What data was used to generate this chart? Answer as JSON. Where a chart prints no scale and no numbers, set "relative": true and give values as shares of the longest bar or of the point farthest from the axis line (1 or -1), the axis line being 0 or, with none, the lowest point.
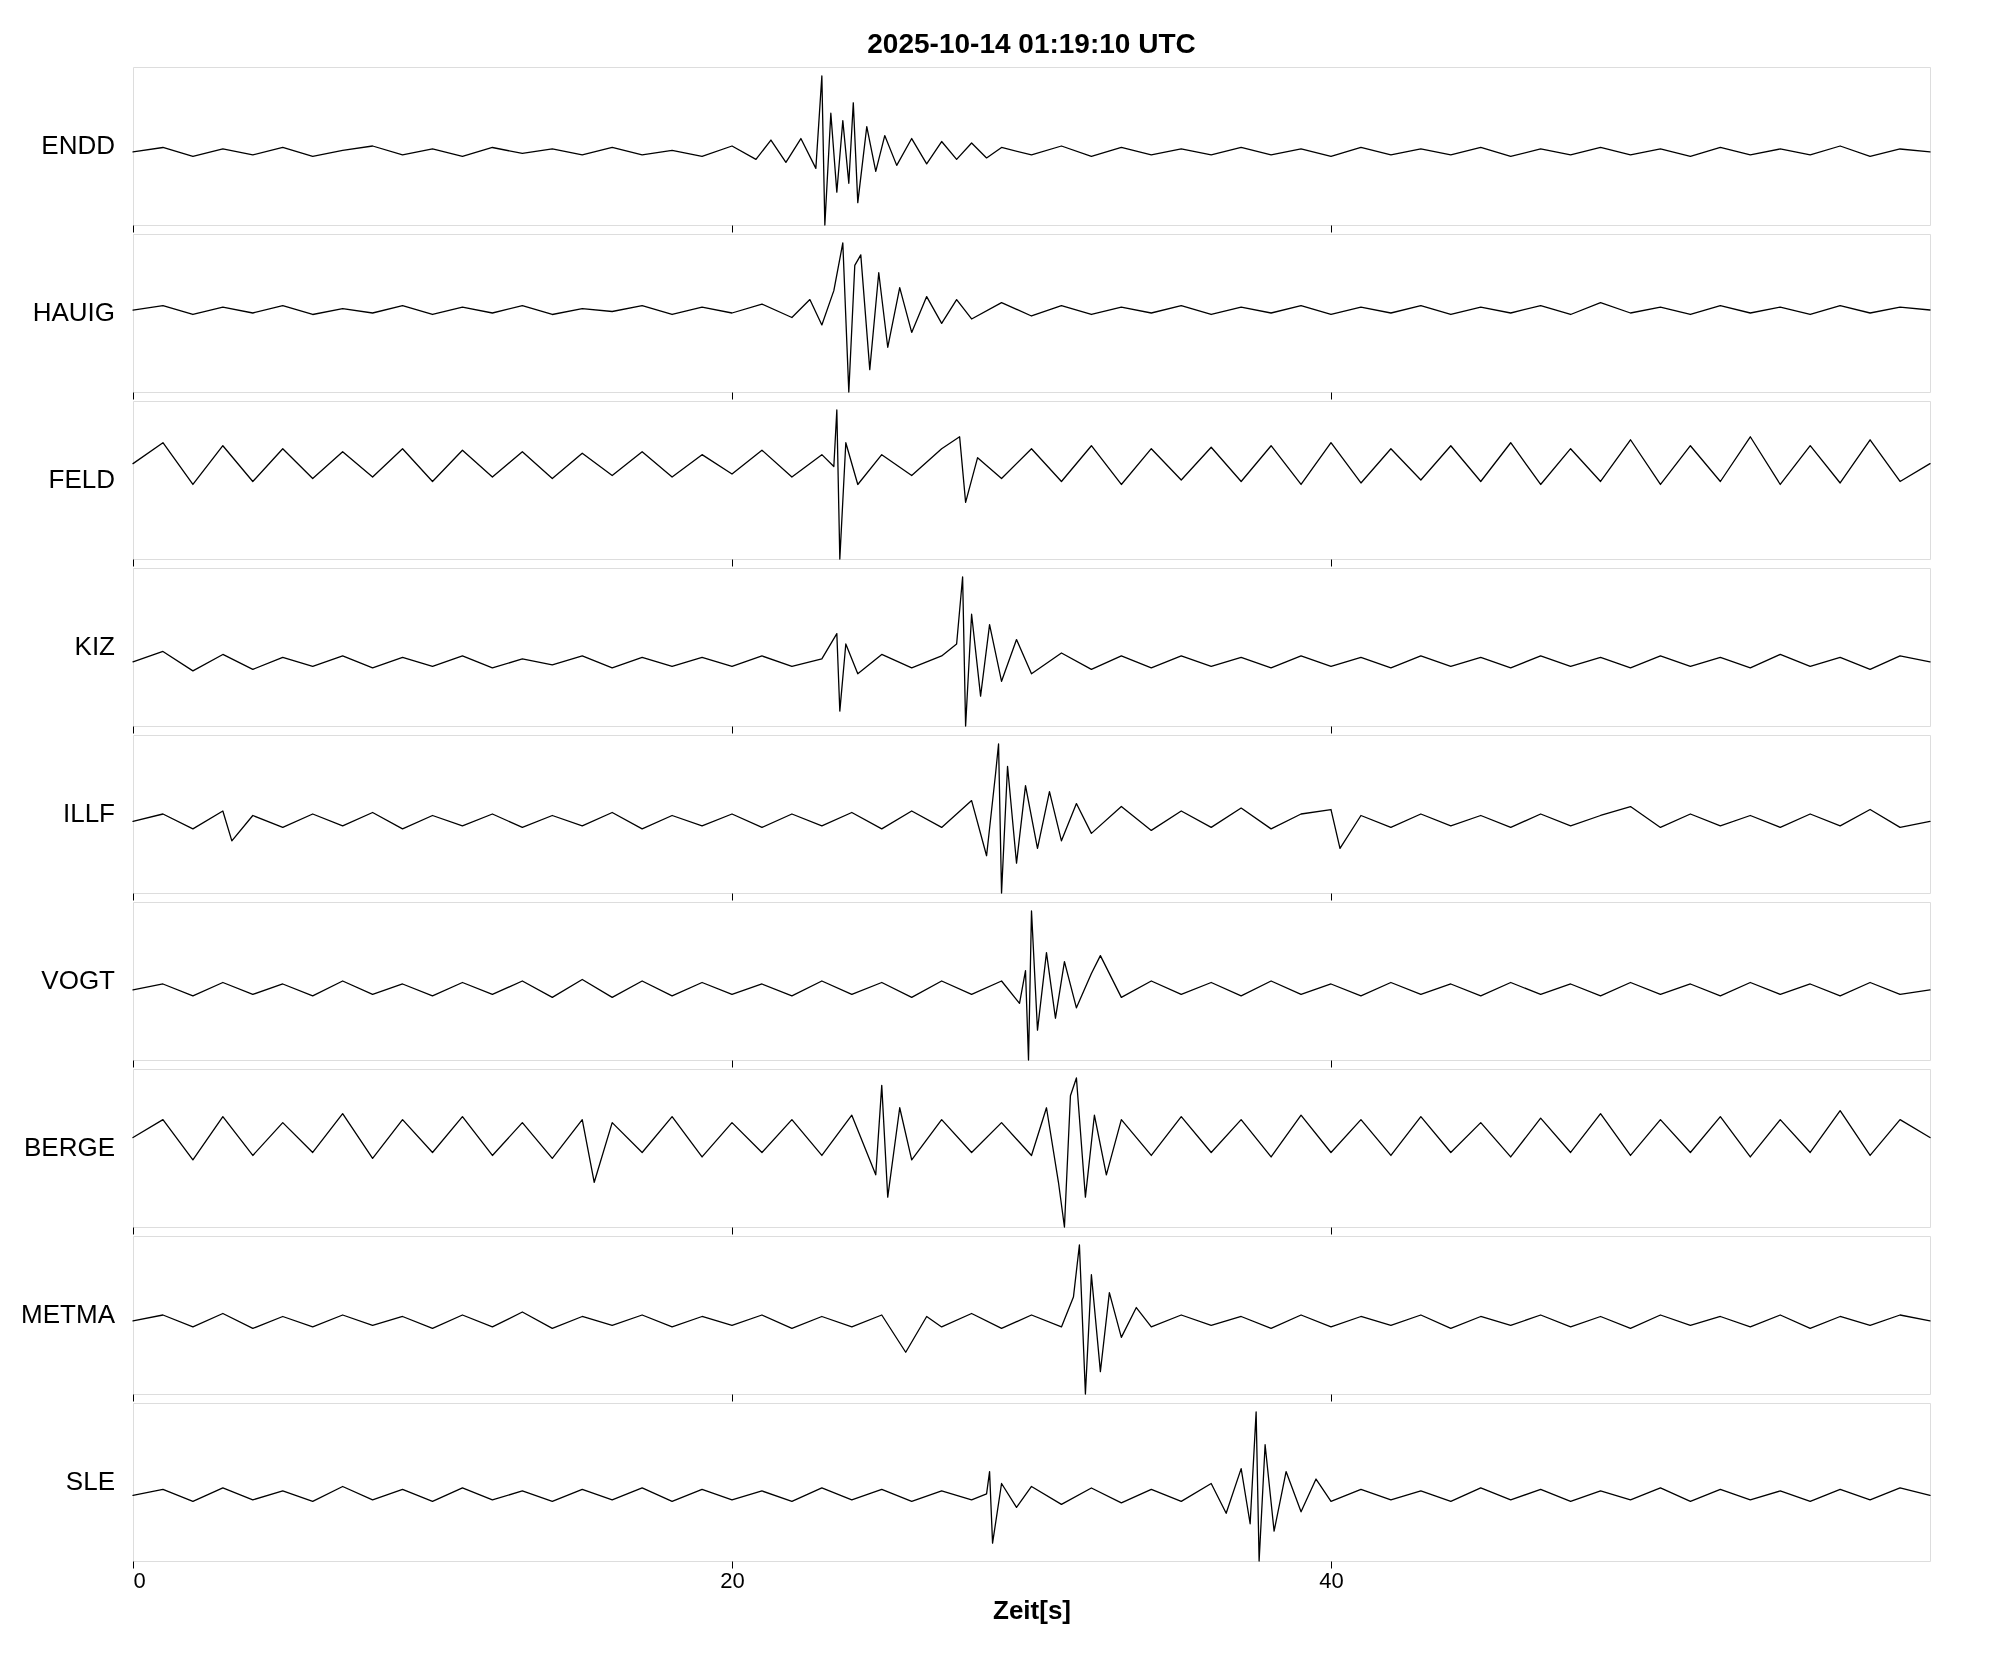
{
  "chart_data": [
    {
      "type": "line",
      "relative": true,
      "title": "2025-10-14  01:19:10 UTC",
      "xlim": [
        0,
        60
      ],
      "xticks": [
        0,
        20,
        40
      ],
      "tick_labels": false,
      "series": [
        {
          "name": "ENDD",
          "color": "#000000",
          "x": [
            0,
            1,
            2,
            3,
            4,
            5,
            6,
            7,
            8,
            9,
            10,
            11,
            12,
            13,
            14,
            15,
            16,
            17,
            18,
            19,
            20,
            20.8,
            21.3,
            21.8,
            22.3,
            22.8,
            23.0,
            23.1,
            23.3,
            23.5,
            23.7,
            23.9,
            24.05,
            24.2,
            24.5,
            24.8,
            25.1,
            25.5,
            26,
            26.5,
            27,
            27.5,
            28,
            28.5,
            29,
            30,
            31,
            32,
            33,
            34,
            35,
            36,
            37,
            38,
            39,
            40,
            41,
            42,
            43,
            44,
            45,
            46,
            47,
            48,
            49,
            50,
            51,
            52,
            53,
            54,
            55,
            56,
            57,
            58,
            59,
            60
          ],
          "values": [
            0.49,
            0.52,
            0.46,
            0.51,
            0.47,
            0.52,
            0.46,
            0.5,
            0.53,
            0.47,
            0.51,
            0.46,
            0.52,
            0.48,
            0.51,
            0.47,
            0.52,
            0.47,
            0.5,
            0.46,
            0.53,
            0.44,
            0.57,
            0.42,
            0.58,
            0.38,
            1.0,
            0.0,
            0.75,
            0.22,
            0.7,
            0.28,
            0.82,
            0.15,
            0.66,
            0.36,
            0.6,
            0.4,
            0.58,
            0.41,
            0.56,
            0.44,
            0.55,
            0.45,
            0.52,
            0.47,
            0.53,
            0.46,
            0.52,
            0.47,
            0.51,
            0.47,
            0.52,
            0.47,
            0.51,
            0.46,
            0.52,
            0.47,
            0.51,
            0.47,
            0.52,
            0.46,
            0.51,
            0.47,
            0.52,
            0.47,
            0.51,
            0.46,
            0.52,
            0.47,
            0.51,
            0.47,
            0.53,
            0.46,
            0.51,
            0.49
          ]
        }
      ]
    },
    {
      "type": "line",
      "relative": true,
      "xlim": [
        0,
        60
      ],
      "xticks": [
        0,
        20,
        40
      ],
      "tick_labels": false,
      "series": [
        {
          "name": "HAUIG",
          "color": "#000000",
          "x": [
            0,
            1,
            2,
            3,
            4,
            5,
            6,
            7,
            8,
            9,
            10,
            11,
            12,
            13,
            14,
            15,
            16,
            17,
            18,
            19,
            20,
            21,
            22,
            22.6,
            23.0,
            23.4,
            23.7,
            23.9,
            24.1,
            24.3,
            24.6,
            24.9,
            25.2,
            25.6,
            26,
            26.5,
            27,
            27.5,
            28,
            29,
            30,
            31,
            32,
            33,
            34,
            35,
            36,
            37,
            38,
            39,
            40,
            41,
            42,
            43,
            44,
            45,
            46,
            47,
            48,
            49,
            50,
            51,
            52,
            53,
            54,
            55,
            56,
            57,
            58,
            59,
            60
          ],
          "values": [
            0.55,
            0.58,
            0.52,
            0.57,
            0.53,
            0.58,
            0.52,
            0.56,
            0.53,
            0.58,
            0.52,
            0.57,
            0.53,
            0.58,
            0.52,
            0.56,
            0.54,
            0.58,
            0.52,
            0.57,
            0.53,
            0.59,
            0.5,
            0.62,
            0.45,
            0.68,
            1.0,
            0.0,
            0.85,
            0.92,
            0.15,
            0.8,
            0.3,
            0.7,
            0.4,
            0.64,
            0.46,
            0.62,
            0.49,
            0.6,
            0.51,
            0.58,
            0.52,
            0.57,
            0.53,
            0.58,
            0.52,
            0.57,
            0.53,
            0.58,
            0.52,
            0.57,
            0.53,
            0.58,
            0.52,
            0.57,
            0.53,
            0.58,
            0.52,
            0.6,
            0.53,
            0.57,
            0.52,
            0.58,
            0.53,
            0.57,
            0.52,
            0.58,
            0.53,
            0.57,
            0.55
          ]
        }
      ]
    },
    {
      "type": "line",
      "relative": true,
      "xlim": [
        0,
        60
      ],
      "xticks": [
        0,
        20,
        40
      ],
      "tick_labels": false,
      "series": [
        {
          "name": "FELD",
          "color": "#000000",
          "x": [
            0,
            1,
            2,
            3,
            4,
            5,
            6,
            7,
            8,
            9,
            10,
            11,
            12,
            13,
            14,
            15,
            16,
            17,
            18,
            19,
            20,
            21,
            22,
            23,
            23.4,
            23.5,
            23.6,
            23.8,
            24.2,
            25,
            26,
            27,
            27.6,
            27.8,
            28.2,
            29,
            30,
            31,
            32,
            33,
            34,
            35,
            36,
            37,
            38,
            39,
            40,
            41,
            42,
            43,
            44,
            45,
            46,
            47,
            48,
            49,
            50,
            51,
            52,
            53,
            54,
            55,
            56,
            57,
            58,
            59,
            60
          ],
          "values": [
            0.64,
            0.78,
            0.5,
            0.76,
            0.52,
            0.74,
            0.54,
            0.72,
            0.55,
            0.74,
            0.52,
            0.73,
            0.55,
            0.72,
            0.54,
            0.71,
            0.56,
            0.72,
            0.55,
            0.7,
            0.57,
            0.73,
            0.55,
            0.7,
            0.62,
            1.0,
            0.0,
            0.78,
            0.5,
            0.7,
            0.56,
            0.74,
            0.82,
            0.38,
            0.68,
            0.54,
            0.74,
            0.52,
            0.76,
            0.5,
            0.74,
            0.53,
            0.75,
            0.52,
            0.76,
            0.5,
            0.78,
            0.51,
            0.74,
            0.53,
            0.76,
            0.52,
            0.78,
            0.5,
            0.74,
            0.52,
            0.8,
            0.5,
            0.76,
            0.52,
            0.82,
            0.5,
            0.76,
            0.51,
            0.8,
            0.52,
            0.64
          ]
        }
      ]
    },
    {
      "type": "line",
      "relative": true,
      "xlim": [
        0,
        60
      ],
      "xticks": [
        0,
        20,
        40
      ],
      "tick_labels": false,
      "series": [
        {
          "name": "KIZ",
          "color": "#000000",
          "x": [
            0,
            1,
            2,
            3,
            4,
            5,
            6,
            7,
            8,
            9,
            10,
            11,
            12,
            13,
            14,
            15,
            16,
            17,
            18,
            19,
            20,
            21,
            22,
            23,
            23.5,
            23.6,
            23.8,
            24.2,
            25,
            26,
            27,
            27.5,
            27.7,
            27.8,
            28.0,
            28.3,
            28.6,
            29,
            29.5,
            30,
            31,
            32,
            33,
            34,
            35,
            36,
            37,
            38,
            39,
            40,
            41,
            42,
            43,
            44,
            45,
            46,
            47,
            48,
            49,
            50,
            51,
            52,
            53,
            54,
            55,
            56,
            57,
            58,
            59,
            60
          ],
          "values": [
            0.43,
            0.5,
            0.37,
            0.48,
            0.38,
            0.46,
            0.4,
            0.47,
            0.39,
            0.46,
            0.4,
            0.47,
            0.39,
            0.45,
            0.41,
            0.47,
            0.39,
            0.46,
            0.4,
            0.46,
            0.4,
            0.47,
            0.4,
            0.45,
            0.62,
            0.1,
            0.55,
            0.35,
            0.48,
            0.39,
            0.47,
            0.55,
            1.0,
            0.0,
            0.75,
            0.2,
            0.68,
            0.3,
            0.58,
            0.35,
            0.49,
            0.38,
            0.47,
            0.39,
            0.47,
            0.4,
            0.46,
            0.39,
            0.47,
            0.4,
            0.46,
            0.39,
            0.47,
            0.4,
            0.46,
            0.39,
            0.47,
            0.4,
            0.46,
            0.39,
            0.47,
            0.4,
            0.46,
            0.39,
            0.48,
            0.4,
            0.46,
            0.38,
            0.47,
            0.43
          ]
        }
      ]
    },
    {
      "type": "line",
      "relative": true,
      "xlim": [
        0,
        60
      ],
      "xticks": [
        0,
        20,
        40
      ],
      "tick_labels": false,
      "series": [
        {
          "name": "ILLF",
          "color": "#000000",
          "x": [
            0,
            1,
            2,
            3,
            3.3,
            4,
            5,
            6,
            7,
            8,
            9,
            10,
            11,
            12,
            13,
            14,
            15,
            16,
            17,
            18,
            19,
            20,
            21,
            22,
            23,
            24,
            25,
            26,
            27,
            28,
            28.5,
            28.8,
            28.9,
            29.0,
            29.2,
            29.5,
            29.8,
            30.2,
            30.6,
            31,
            31.5,
            32,
            33,
            34,
            35,
            36,
            37,
            38,
            39,
            40,
            40.3,
            41,
            42,
            43,
            44,
            45,
            46,
            47,
            48,
            49,
            50,
            51,
            52,
            53,
            54,
            55,
            56,
            57,
            58,
            59,
            60
          ],
          "values": [
            0.48,
            0.53,
            0.43,
            0.55,
            0.35,
            0.52,
            0.44,
            0.53,
            0.45,
            0.54,
            0.43,
            0.52,
            0.45,
            0.53,
            0.44,
            0.52,
            0.45,
            0.54,
            0.43,
            0.52,
            0.45,
            0.53,
            0.44,
            0.53,
            0.45,
            0.54,
            0.43,
            0.55,
            0.44,
            0.62,
            0.25,
            0.8,
            1.0,
            0.0,
            0.85,
            0.2,
            0.72,
            0.3,
            0.68,
            0.35,
            0.6,
            0.4,
            0.58,
            0.42,
            0.55,
            0.44,
            0.57,
            0.43,
            0.53,
            0.56,
            0.3,
            0.52,
            0.44,
            0.53,
            0.45,
            0.52,
            0.44,
            0.53,
            0.45,
            0.52,
            0.58,
            0.44,
            0.53,
            0.45,
            0.52,
            0.44,
            0.53,
            0.45,
            0.56,
            0.44,
            0.48
          ]
        }
      ]
    },
    {
      "type": "line",
      "relative": true,
      "xlim": [
        0,
        60
      ],
      "xticks": [
        0,
        20,
        40
      ],
      "tick_labels": false,
      "series": [
        {
          "name": "VOGT",
          "color": "#000000",
          "x": [
            0,
            1,
            2,
            3,
            4,
            5,
            6,
            7,
            8,
            9,
            10,
            11,
            12,
            13,
            14,
            15,
            16,
            17,
            18,
            19,
            20,
            21,
            22,
            23,
            24,
            25,
            26,
            27,
            28,
            29,
            29.6,
            29.8,
            29.9,
            30.0,
            30.2,
            30.5,
            30.8,
            31.1,
            31.5,
            32,
            32.3,
            33,
            34,
            35,
            36,
            37,
            38,
            39,
            40,
            41,
            42,
            43,
            44,
            45,
            46,
            47,
            48,
            49,
            50,
            51,
            52,
            53,
            54,
            55,
            56,
            57,
            58,
            59,
            60
          ],
          "values": [
            0.47,
            0.51,
            0.43,
            0.52,
            0.44,
            0.51,
            0.43,
            0.53,
            0.44,
            0.51,
            0.43,
            0.52,
            0.44,
            0.53,
            0.42,
            0.54,
            0.42,
            0.53,
            0.43,
            0.52,
            0.44,
            0.51,
            0.43,
            0.53,
            0.44,
            0.52,
            0.42,
            0.53,
            0.44,
            0.53,
            0.38,
            0.6,
            0.0,
            1.0,
            0.2,
            0.72,
            0.28,
            0.66,
            0.35,
            0.58,
            0.7,
            0.42,
            0.53,
            0.44,
            0.52,
            0.43,
            0.53,
            0.44,
            0.51,
            0.43,
            0.52,
            0.44,
            0.51,
            0.43,
            0.52,
            0.44,
            0.51,
            0.43,
            0.52,
            0.44,
            0.51,
            0.43,
            0.52,
            0.44,
            0.51,
            0.43,
            0.52,
            0.44,
            0.47
          ]
        }
      ]
    },
    {
      "type": "line",
      "relative": true,
      "xlim": [
        0,
        60
      ],
      "xticks": [
        0,
        20,
        40
      ],
      "tick_labels": false,
      "series": [
        {
          "name": "BERGE",
          "color": "#000000",
          "x": [
            0,
            1,
            2,
            3,
            4,
            5,
            6,
            7,
            8,
            9,
            10,
            11,
            12,
            13,
            14,
            15,
            15.4,
            16,
            17,
            18,
            19,
            20,
            21,
            22,
            23,
            24,
            24.8,
            25.0,
            25.2,
            25.6,
            26,
            27,
            28,
            29,
            30,
            30.5,
            30.9,
            31.1,
            31.3,
            31.5,
            31.8,
            32.1,
            32.5,
            33,
            34,
            35,
            36,
            37,
            38,
            39,
            40,
            41,
            42,
            43,
            44,
            45,
            46,
            47,
            48,
            49,
            50,
            51,
            52,
            53,
            54,
            55,
            56,
            57,
            58,
            59,
            60
          ],
          "values": [
            0.6,
            0.72,
            0.45,
            0.74,
            0.48,
            0.7,
            0.5,
            0.76,
            0.46,
            0.72,
            0.5,
            0.74,
            0.48,
            0.7,
            0.46,
            0.72,
            0.3,
            0.7,
            0.5,
            0.74,
            0.47,
            0.7,
            0.5,
            0.72,
            0.48,
            0.75,
            0.35,
            0.95,
            0.2,
            0.8,
            0.45,
            0.72,
            0.5,
            0.7,
            0.48,
            0.8,
            0.3,
            0.0,
            0.88,
            1.0,
            0.2,
            0.75,
            0.35,
            0.72,
            0.48,
            0.74,
            0.5,
            0.72,
            0.47,
            0.75,
            0.5,
            0.72,
            0.48,
            0.74,
            0.5,
            0.7,
            0.47,
            0.73,
            0.5,
            0.76,
            0.48,
            0.72,
            0.5,
            0.74,
            0.47,
            0.72,
            0.5,
            0.78,
            0.48,
            0.72,
            0.6
          ]
        }
      ]
    },
    {
      "type": "line",
      "relative": true,
      "xlim": [
        0,
        60
      ],
      "xticks": [
        0,
        20,
        40
      ],
      "tick_labels": false,
      "series": [
        {
          "name": "METMA",
          "color": "#000000",
          "x": [
            0,
            1,
            2,
            3,
            4,
            5,
            6,
            7,
            8,
            9,
            10,
            11,
            12,
            13,
            14,
            15,
            16,
            17,
            18,
            19,
            20,
            21,
            22,
            23,
            24,
            25,
            25.8,
            26.5,
            27,
            28,
            29,
            30,
            31,
            31.4,
            31.6,
            31.8,
            32.0,
            32.3,
            32.6,
            33,
            33.5,
            34,
            35,
            36,
            37,
            38,
            39,
            40,
            41,
            42,
            43,
            44,
            45,
            46,
            47,
            48,
            49,
            50,
            51,
            52,
            53,
            54,
            55,
            56,
            57,
            58,
            59,
            60
          ],
          "values": [
            0.49,
            0.53,
            0.45,
            0.54,
            0.44,
            0.52,
            0.45,
            0.53,
            0.46,
            0.52,
            0.44,
            0.53,
            0.45,
            0.55,
            0.44,
            0.52,
            0.46,
            0.53,
            0.45,
            0.52,
            0.46,
            0.53,
            0.44,
            0.52,
            0.45,
            0.53,
            0.28,
            0.52,
            0.45,
            0.54,
            0.44,
            0.53,
            0.45,
            0.65,
            1.0,
            0.0,
            0.8,
            0.15,
            0.68,
            0.38,
            0.58,
            0.45,
            0.53,
            0.46,
            0.52,
            0.44,
            0.53,
            0.45,
            0.52,
            0.46,
            0.53,
            0.44,
            0.52,
            0.46,
            0.53,
            0.45,
            0.52,
            0.44,
            0.53,
            0.46,
            0.52,
            0.45,
            0.53,
            0.44,
            0.52,
            0.46,
            0.53,
            0.49
          ]
        }
      ]
    },
    {
      "type": "line",
      "relative": true,
      "xlim": [
        0,
        60
      ],
      "xticks": [
        0,
        20,
        40
      ],
      "tick_labels": "x",
      "xlabel": "Zeit[s]",
      "series": [
        {
          "name": "SLE",
          "color": "#000000",
          "x": [
            0,
            1,
            2,
            3,
            4,
            5,
            6,
            7,
            8,
            9,
            10,
            11,
            12,
            13,
            14,
            15,
            16,
            17,
            18,
            19,
            20,
            21,
            22,
            23,
            24,
            25,
            26,
            27,
            28,
            28.5,
            28.6,
            28.7,
            29,
            29.5,
            30,
            31,
            32,
            33,
            34,
            35,
            36,
            36.5,
            37,
            37.3,
            37.5,
            37.6,
            37.8,
            38.1,
            38.5,
            39,
            39.5,
            40,
            41,
            42,
            43,
            44,
            45,
            46,
            47,
            48,
            49,
            50,
            51,
            52,
            53,
            54,
            55,
            56,
            57,
            58,
            59,
            60
          ],
          "values": [
            0.44,
            0.48,
            0.4,
            0.49,
            0.41,
            0.47,
            0.4,
            0.5,
            0.41,
            0.48,
            0.4,
            0.49,
            0.41,
            0.47,
            0.4,
            0.48,
            0.41,
            0.49,
            0.4,
            0.48,
            0.41,
            0.47,
            0.4,
            0.49,
            0.41,
            0.48,
            0.4,
            0.47,
            0.41,
            0.45,
            0.6,
            0.12,
            0.52,
            0.36,
            0.5,
            0.38,
            0.49,
            0.39,
            0.48,
            0.4,
            0.52,
            0.32,
            0.62,
            0.25,
            1.0,
            0.0,
            0.78,
            0.2,
            0.6,
            0.33,
            0.55,
            0.4,
            0.48,
            0.41,
            0.47,
            0.4,
            0.49,
            0.41,
            0.48,
            0.4,
            0.47,
            0.41,
            0.49,
            0.4,
            0.48,
            0.41,
            0.47,
            0.4,
            0.48,
            0.41,
            0.49,
            0.44
          ]
        }
      ]
    }
  ]
}
